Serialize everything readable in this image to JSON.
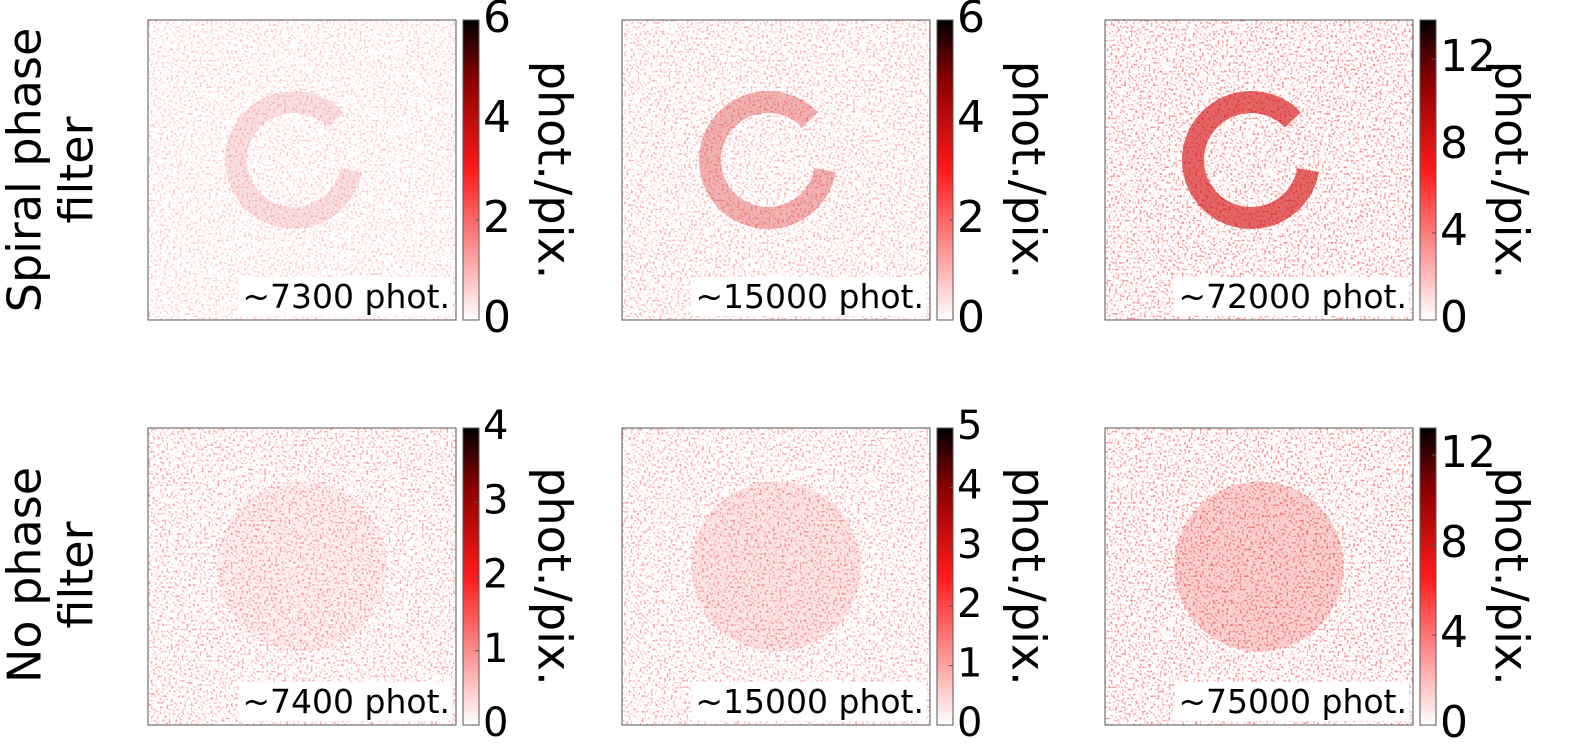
{
  "row_labels": [
    [
      "Spiral phase",
      "filter"
    ],
    [
      "No phase",
      "filter"
    ]
  ],
  "chart_data": [
    {
      "type": "heatmap",
      "annotation": "~7300 phot.",
      "zlabel": "phot./pix.",
      "zlim": [
        0,
        6
      ],
      "zticks": [
        0,
        2,
        4,
        6
      ]
    },
    {
      "type": "heatmap",
      "annotation": "~15000 phot.",
      "zlabel": "phot./pix.",
      "zlim": [
        0,
        6
      ],
      "zticks": [
        0,
        2,
        4,
        6
      ]
    },
    {
      "type": "heatmap",
      "annotation": "~72000 phot.",
      "zlabel": "phot./pix.",
      "zlim": [
        0,
        13.8
      ],
      "zticks": [
        0,
        4,
        8,
        12
      ]
    },
    {
      "type": "heatmap",
      "annotation": "~7400 phot.",
      "zlabel": "phot./pix.",
      "zlim": [
        0,
        4
      ],
      "zticks": [
        0,
        1,
        2,
        3,
        4
      ]
    },
    {
      "type": "heatmap",
      "annotation": "~15000 phot.",
      "zlabel": "phot./pix.",
      "zlim": [
        0,
        5
      ],
      "zticks": [
        0,
        1,
        2,
        3,
        4,
        5
      ]
    },
    {
      "type": "heatmap",
      "annotation": "~75000 phot.",
      "zlabel": "phot./pix.",
      "zlim": [
        0,
        13.2
      ],
      "zticks": [
        0,
        4,
        8,
        12
      ]
    }
  ]
}
